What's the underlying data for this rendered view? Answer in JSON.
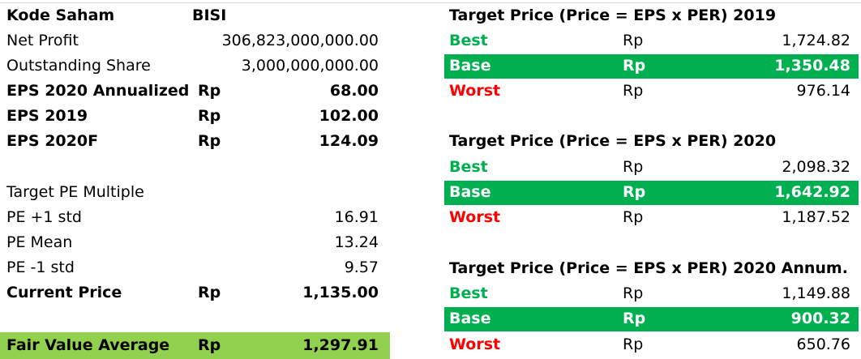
{
  "left": {
    "kode_label": "Kode Saham",
    "kode_value": "BISI",
    "net_profit_label": "Net Profit",
    "net_profit_value": "306,823,000,000.00",
    "outstanding_label": "Outstanding Share",
    "outstanding_value": "3,000,000,000.00",
    "eps_annualized_label": "EPS 2020 Annualized",
    "eps_annualized_cur": "Rp",
    "eps_annualized_value": "68.00",
    "eps2019_label": "EPS 2019",
    "eps2019_cur": "Rp",
    "eps2019_value": "102.00",
    "eps2020f_label": "EPS 2020F",
    "eps2020f_cur": "Rp",
    "eps2020f_value": "124.09",
    "target_pe_label": "Target PE Multiple",
    "pe_plus_label": "PE +1 std",
    "pe_plus_value": "16.91",
    "pe_mean_label": "PE Mean",
    "pe_mean_value": "13.24",
    "pe_minus_label": "PE -1 std",
    "pe_minus_value": "9.57",
    "current_price_label": "Current Price",
    "current_price_cur": "Rp",
    "current_price_value": "1,135.00",
    "fair_value_label": "Fair Value Average",
    "fair_value_cur": "Rp",
    "fair_value_value": "1,297.91"
  },
  "right": {
    "sections": [
      {
        "title": "Target Price (Price = EPS x PER) 2019",
        "rows": [
          {
            "label": "Best",
            "cur": "Rp",
            "value": "1,724.82"
          },
          {
            "label": "Base",
            "cur": "Rp",
            "value": "1,350.48"
          },
          {
            "label": "Worst",
            "cur": "Rp",
            "value": "976.14"
          }
        ]
      },
      {
        "title": "Target Price (Price = EPS x PER) 2020",
        "rows": [
          {
            "label": "Best",
            "cur": "Rp",
            "value": "2,098.32"
          },
          {
            "label": "Base",
            "cur": "Rp",
            "value": "1,642.92"
          },
          {
            "label": "Worst",
            "cur": "Rp",
            "value": "1,187.52"
          }
        ]
      },
      {
        "title": "Target Price (Price = EPS x PER) 2020 Annum.",
        "rows": [
          {
            "label": "Best",
            "cur": "Rp",
            "value": "1,149.88"
          },
          {
            "label": "Base",
            "cur": "Rp",
            "value": "900.32"
          },
          {
            "label": "Worst",
            "cur": "Rp",
            "value": "650.76"
          }
        ]
      }
    ]
  },
  "colors": {
    "best": "#00b050",
    "worst": "#ff0000",
    "base_band": "#00b050",
    "fair_value_band": "#92d050"
  }
}
